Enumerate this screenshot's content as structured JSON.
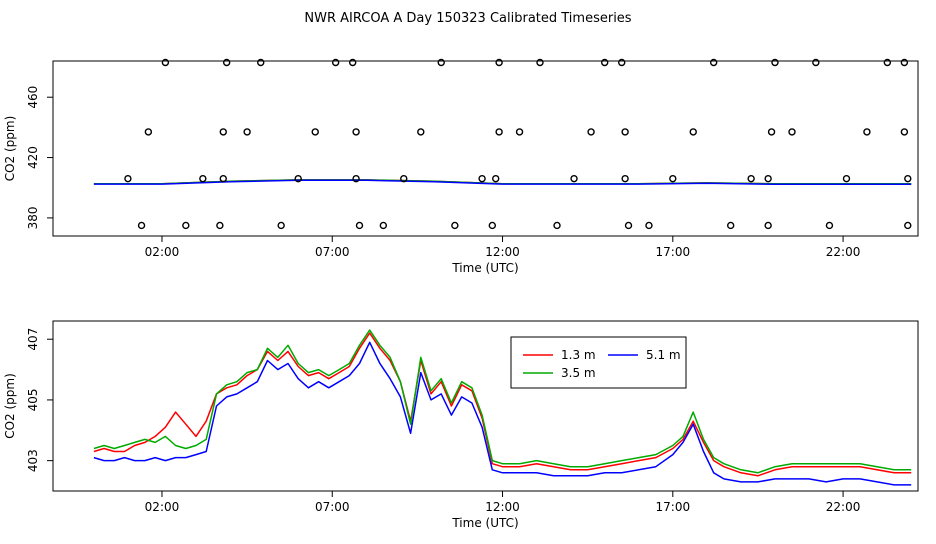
{
  "title": "NWR AIRCOA A  Day 150323  Calibrated Timeseries",
  "chart_data": [
    {
      "type": "scatter",
      "xlabel": "Time (UTC)",
      "ylabel": "CO2 (ppm)",
      "xticks": [
        "02:00",
        "07:00",
        "12:00",
        "17:00",
        "22:00"
      ],
      "yticks": [
        "380",
        "420",
        "460"
      ],
      "xlim": [
        -1.2,
        24.2
      ],
      "ylim": [
        368,
        484
      ],
      "grid": false,
      "points": [
        [
          1.4,
          375
        ],
        [
          2.1,
          483
        ],
        [
          1.6,
          437
        ],
        [
          1.0,
          406
        ],
        [
          2.7,
          375
        ],
        [
          3.2,
          406
        ],
        [
          3.7,
          375
        ],
        [
          3.8,
          406
        ],
        [
          3.8,
          437
        ],
        [
          3.9,
          483
        ],
        [
          4.5,
          437
        ],
        [
          4.9,
          483
        ],
        [
          5.5,
          375
        ],
        [
          6.0,
          406
        ],
        [
          6.5,
          437
        ],
        [
          7.1,
          483
        ],
        [
          7.6,
          483
        ],
        [
          7.7,
          437
        ],
        [
          7.7,
          406
        ],
        [
          7.8,
          375
        ],
        [
          8.5,
          375
        ],
        [
          9.1,
          406
        ],
        [
          9.6,
          437
        ],
        [
          10.2,
          483
        ],
        [
          10.6,
          375
        ],
        [
          11.4,
          406
        ],
        [
          11.7,
          375
        ],
        [
          11.8,
          406
        ],
        [
          11.9,
          437
        ],
        [
          11.9,
          483
        ],
        [
          12.5,
          437
        ],
        [
          13.1,
          483
        ],
        [
          13.6,
          375
        ],
        [
          14.1,
          406
        ],
        [
          14.6,
          437
        ],
        [
          15.0,
          483
        ],
        [
          15.5,
          483
        ],
        [
          15.6,
          437
        ],
        [
          15.6,
          406
        ],
        [
          15.7,
          375
        ],
        [
          16.3,
          375
        ],
        [
          17.0,
          406
        ],
        [
          17.6,
          437
        ],
        [
          18.2,
          483
        ],
        [
          18.7,
          375
        ],
        [
          19.3,
          406
        ],
        [
          19.8,
          375
        ],
        [
          19.8,
          406
        ],
        [
          19.9,
          437
        ],
        [
          20.0,
          483
        ],
        [
          20.5,
          437
        ],
        [
          21.2,
          483
        ],
        [
          21.6,
          375
        ],
        [
          22.1,
          406
        ],
        [
          22.7,
          437
        ],
        [
          23.3,
          483
        ],
        [
          23.8,
          483
        ],
        [
          23.8,
          437
        ],
        [
          23.9,
          406
        ],
        [
          23.9,
          375
        ]
      ],
      "series": [
        {
          "name": "1.3 m",
          "color": "#ff0000",
          "x": [
            0,
            2,
            4,
            6,
            8,
            10,
            12,
            14,
            16,
            18,
            20,
            22,
            24
          ],
          "values": [
            402.6,
            402.6,
            404.3,
            405.2,
            405.2,
            404.3,
            402.6,
            402.6,
            402.6,
            403.2,
            402.6,
            402.6,
            402.6
          ]
        },
        {
          "name": "3.5 m",
          "color": "#00aa00",
          "x": [
            0,
            2,
            4,
            6,
            8,
            10,
            12,
            14,
            16,
            18,
            20,
            22,
            24
          ],
          "values": [
            402.6,
            402.6,
            404.3,
            405.2,
            405.2,
            404.3,
            402.6,
            402.6,
            402.6,
            403.2,
            402.6,
            402.6,
            402.6
          ]
        },
        {
          "name": "5.1 m",
          "color": "#0000ff",
          "x": [
            0,
            2,
            4,
            6,
            8,
            10,
            12,
            14,
            16,
            18,
            20,
            22,
            24
          ],
          "values": [
            402.4,
            402.4,
            404.0,
            404.9,
            404.9,
            404.0,
            402.4,
            402.4,
            402.4,
            403.0,
            402.3,
            402.3,
            402.3
          ]
        }
      ]
    },
    {
      "type": "line",
      "xlabel": "Time (UTC)",
      "ylabel": "CO2 (ppm)",
      "xticks": [
        "02:00",
        "07:00",
        "12:00",
        "17:00",
        "22:00"
      ],
      "yticks": [
        "403",
        "405",
        "407"
      ],
      "xlim": [
        -1.2,
        24.2
      ],
      "ylim": [
        402.0,
        407.6
      ],
      "grid": false,
      "legend": "top-center",
      "series": [
        {
          "name": "1.3 m",
          "color": "#ff0000",
          "x": [
            0,
            0.3,
            0.6,
            0.9,
            1.2,
            1.5,
            1.8,
            2.1,
            2.4,
            2.7,
            3.0,
            3.3,
            3.6,
            3.9,
            4.2,
            4.5,
            4.8,
            5.1,
            5.4,
            5.7,
            6.0,
            6.3,
            6.6,
            6.9,
            7.2,
            7.5,
            7.8,
            8.1,
            8.4,
            8.7,
            9.0,
            9.3,
            9.6,
            9.9,
            10.2,
            10.5,
            10.8,
            11.1,
            11.4,
            11.7,
            12.0,
            12.5,
            13.0,
            13.5,
            14.0,
            14.5,
            15.0,
            15.5,
            16.0,
            16.5,
            17.0,
            17.3,
            17.6,
            17.9,
            18.2,
            18.5,
            19.0,
            19.5,
            20.0,
            20.5,
            21.0,
            21.5,
            22.0,
            22.5,
            23.0,
            23.5,
            24.0
          ],
          "values": [
            403.3,
            403.4,
            403.3,
            403.3,
            403.5,
            403.6,
            403.8,
            404.1,
            404.6,
            404.2,
            403.8,
            404.3,
            405.2,
            405.4,
            405.5,
            405.8,
            406.0,
            406.6,
            406.3,
            406.6,
            406.1,
            405.8,
            405.9,
            405.7,
            405.9,
            406.1,
            406.7,
            407.2,
            406.7,
            406.3,
            405.6,
            404.3,
            406.3,
            405.2,
            405.6,
            404.8,
            405.5,
            405.3,
            404.4,
            402.9,
            402.8,
            402.8,
            402.9,
            402.8,
            402.7,
            402.7,
            402.8,
            402.9,
            403.0,
            403.1,
            403.4,
            403.7,
            404.3,
            403.6,
            403.0,
            402.8,
            402.6,
            402.5,
            402.7,
            402.8,
            402.8,
            402.8,
            402.8,
            402.8,
            402.7,
            402.6,
            402.6
          ]
        },
        {
          "name": "3.5 m",
          "color": "#00aa00",
          "x": [
            0,
            0.3,
            0.6,
            0.9,
            1.2,
            1.5,
            1.8,
            2.1,
            2.4,
            2.7,
            3.0,
            3.3,
            3.6,
            3.9,
            4.2,
            4.5,
            4.8,
            5.1,
            5.4,
            5.7,
            6.0,
            6.3,
            6.6,
            6.9,
            7.2,
            7.5,
            7.8,
            8.1,
            8.4,
            8.7,
            9.0,
            9.3,
            9.6,
            9.9,
            10.2,
            10.5,
            10.8,
            11.1,
            11.4,
            11.7,
            12.0,
            12.5,
            13.0,
            13.5,
            14.0,
            14.5,
            15.0,
            15.5,
            16.0,
            16.5,
            17.0,
            17.3,
            17.6,
            17.9,
            18.2,
            18.5,
            19.0,
            19.5,
            20.0,
            20.5,
            21.0,
            21.5,
            22.0,
            22.5,
            23.0,
            23.5,
            24.0
          ],
          "values": [
            403.4,
            403.5,
            403.4,
            403.5,
            403.6,
            403.7,
            403.6,
            403.8,
            403.5,
            403.4,
            403.5,
            403.7,
            405.2,
            405.5,
            405.6,
            405.9,
            406.0,
            406.7,
            406.4,
            406.8,
            406.2,
            405.9,
            406.0,
            405.8,
            406.0,
            406.2,
            406.8,
            407.3,
            406.8,
            406.4,
            405.6,
            404.2,
            406.4,
            405.3,
            405.7,
            404.9,
            405.6,
            405.4,
            404.5,
            403.0,
            402.9,
            402.9,
            403.0,
            402.9,
            402.8,
            402.8,
            402.9,
            403.0,
            403.1,
            403.2,
            403.5,
            403.8,
            404.6,
            403.7,
            403.1,
            402.9,
            402.7,
            402.6,
            402.8,
            402.9,
            402.9,
            402.9,
            402.9,
            402.9,
            402.8,
            402.7,
            402.7
          ]
        },
        {
          "name": "5.1 m",
          "color": "#0000ff",
          "x": [
            0,
            0.3,
            0.6,
            0.9,
            1.2,
            1.5,
            1.8,
            2.1,
            2.4,
            2.7,
            3.0,
            3.3,
            3.6,
            3.9,
            4.2,
            4.5,
            4.8,
            5.1,
            5.4,
            5.7,
            6.0,
            6.3,
            6.6,
            6.9,
            7.2,
            7.5,
            7.8,
            8.1,
            8.4,
            8.7,
            9.0,
            9.3,
            9.6,
            9.9,
            10.2,
            10.5,
            10.8,
            11.1,
            11.4,
            11.7,
            12.0,
            12.5,
            13.0,
            13.5,
            14.0,
            14.5,
            15.0,
            15.5,
            16.0,
            16.5,
            17.0,
            17.3,
            17.6,
            17.9,
            18.2,
            18.5,
            19.0,
            19.5,
            20.0,
            20.5,
            21.0,
            21.5,
            22.0,
            22.5,
            23.0,
            23.5,
            24.0
          ],
          "values": [
            403.1,
            403.0,
            403.0,
            403.1,
            403.0,
            403.0,
            403.1,
            403.0,
            403.1,
            403.1,
            403.2,
            403.3,
            404.8,
            405.1,
            405.2,
            405.4,
            405.6,
            406.3,
            406.0,
            406.2,
            405.7,
            405.4,
            405.6,
            405.4,
            405.6,
            405.8,
            406.2,
            406.9,
            406.2,
            405.7,
            405.1,
            403.9,
            405.9,
            405.0,
            405.2,
            404.5,
            405.1,
            404.9,
            404.1,
            402.7,
            402.6,
            402.6,
            402.6,
            402.5,
            402.5,
            402.5,
            402.6,
            402.6,
            402.7,
            402.8,
            403.2,
            403.6,
            404.2,
            403.3,
            402.6,
            402.4,
            402.3,
            402.3,
            402.4,
            402.4,
            402.4,
            402.3,
            402.4,
            402.4,
            402.3,
            402.2,
            402.2
          ]
        }
      ]
    }
  ]
}
